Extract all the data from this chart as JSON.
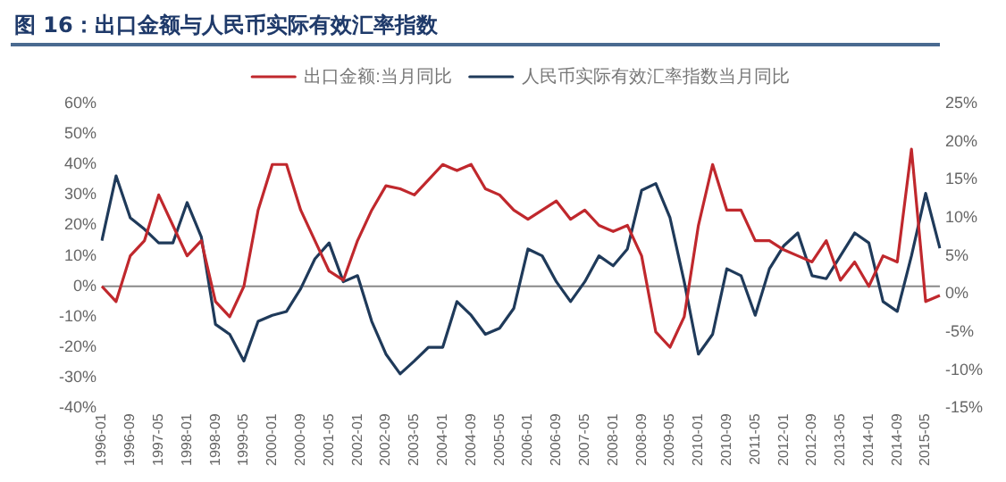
{
  "chart_data": {
    "type": "line",
    "title": "图 16：出口金额与人民币实际有效汇率指数",
    "categories": [
      "1996-01",
      null,
      "1996-09",
      null,
      "1997-05",
      null,
      "1998-01",
      null,
      "1998-09",
      null,
      "1999-05",
      null,
      "2000-01",
      null,
      "2000-09",
      null,
      "2001-05",
      null,
      "2002-01",
      null,
      "2002-09",
      null,
      "2003-05",
      null,
      "2004-01",
      null,
      "2004-09",
      null,
      "2005-05",
      null,
      "2006-01",
      null,
      "2006-09",
      null,
      "2007-05",
      null,
      "2008-01",
      null,
      "2008-09",
      null,
      "2009-05",
      null,
      "2010-01",
      null,
      "2010-09",
      null,
      "2011-05",
      null,
      "2012-01",
      null,
      "2012-09",
      null,
      "2013-05",
      null,
      "2014-01",
      null,
      "2014-09",
      null,
      "2015-05",
      null
    ],
    "series": [
      {
        "name": "出口金额:当月同比",
        "color": "#c0282d",
        "values": [
          0,
          -5,
          10,
          15,
          30,
          20,
          10,
          15,
          -5,
          -10,
          0,
          25,
          40,
          40,
          25,
          15,
          5,
          2,
          15,
          25,
          33,
          32,
          30,
          35,
          40,
          38,
          40,
          32,
          30,
          25,
          22,
          25,
          28,
          22,
          25,
          20,
          18,
          20,
          10,
          -15,
          -20,
          -10,
          20,
          40,
          25,
          25,
          15,
          15,
          12,
          10,
          8,
          15,
          2,
          8,
          0,
          10,
          8,
          45,
          -5,
          -3
        ]
      },
      {
        "name": "人民币实际有效汇率指数当月同比",
        "color": "#1f3a5a",
        "axis": "y2",
        "values": [
          7,
          15.5,
          10,
          8.5,
          6.7,
          6.7,
          12,
          7.5,
          -4,
          -5.3,
          -8.8,
          -3.6,
          -2.8,
          -2.3,
          0.7,
          4.6,
          6.7,
          1.6,
          2.4,
          -3.6,
          -7.9,
          -10.5,
          -8.8,
          -7,
          -7,
          -1,
          -2.8,
          -5.3,
          -4.5,
          -1.9,
          5.9,
          5,
          1.6,
          -1,
          1.6,
          5,
          3.7,
          5.9,
          13.6,
          14.5,
          10,
          1.6,
          -7.9,
          -5.3,
          3.3,
          2.4,
          -2.8,
          3.3,
          6.3,
          8,
          2.4,
          2,
          5,
          8,
          6.7,
          -1,
          -2.3,
          5,
          13.2,
          6
        ]
      }
    ],
    "ylim": [
      -40,
      60
    ],
    "yticks": [
      {
        "value": -40,
        "label": "-40%"
      },
      {
        "value": -30,
        "label": "-30%"
      },
      {
        "value": -20,
        "label": "-20%"
      },
      {
        "value": -10,
        "label": "-10%"
      },
      {
        "value": 0,
        "label": "0%"
      },
      {
        "value": 10,
        "label": "10%"
      },
      {
        "value": 20,
        "label": "20%"
      },
      {
        "value": 30,
        "label": "30%"
      },
      {
        "value": 40,
        "label": "40%"
      },
      {
        "value": 50,
        "label": "50%"
      },
      {
        "value": 60,
        "label": "60%"
      }
    ],
    "y2lim": [
      -15,
      25
    ],
    "y2ticks": [
      {
        "value": -15,
        "label": "-15%"
      },
      {
        "value": -10,
        "label": "-10%"
      },
      {
        "value": -5,
        "label": "-5%"
      },
      {
        "value": 0,
        "label": "0%"
      },
      {
        "value": 5,
        "label": "5%"
      },
      {
        "value": 10,
        "label": "10%"
      },
      {
        "value": 15,
        "label": "15%"
      },
      {
        "value": 20,
        "label": "20%"
      },
      {
        "value": 25,
        "label": "25%"
      }
    ],
    "ref_lines": [
      {
        "axis": "y",
        "value": 0,
        "color": "#888888"
      }
    ],
    "legend": "top",
    "grid": false,
    "marker": "none",
    "line_style": "solid"
  }
}
